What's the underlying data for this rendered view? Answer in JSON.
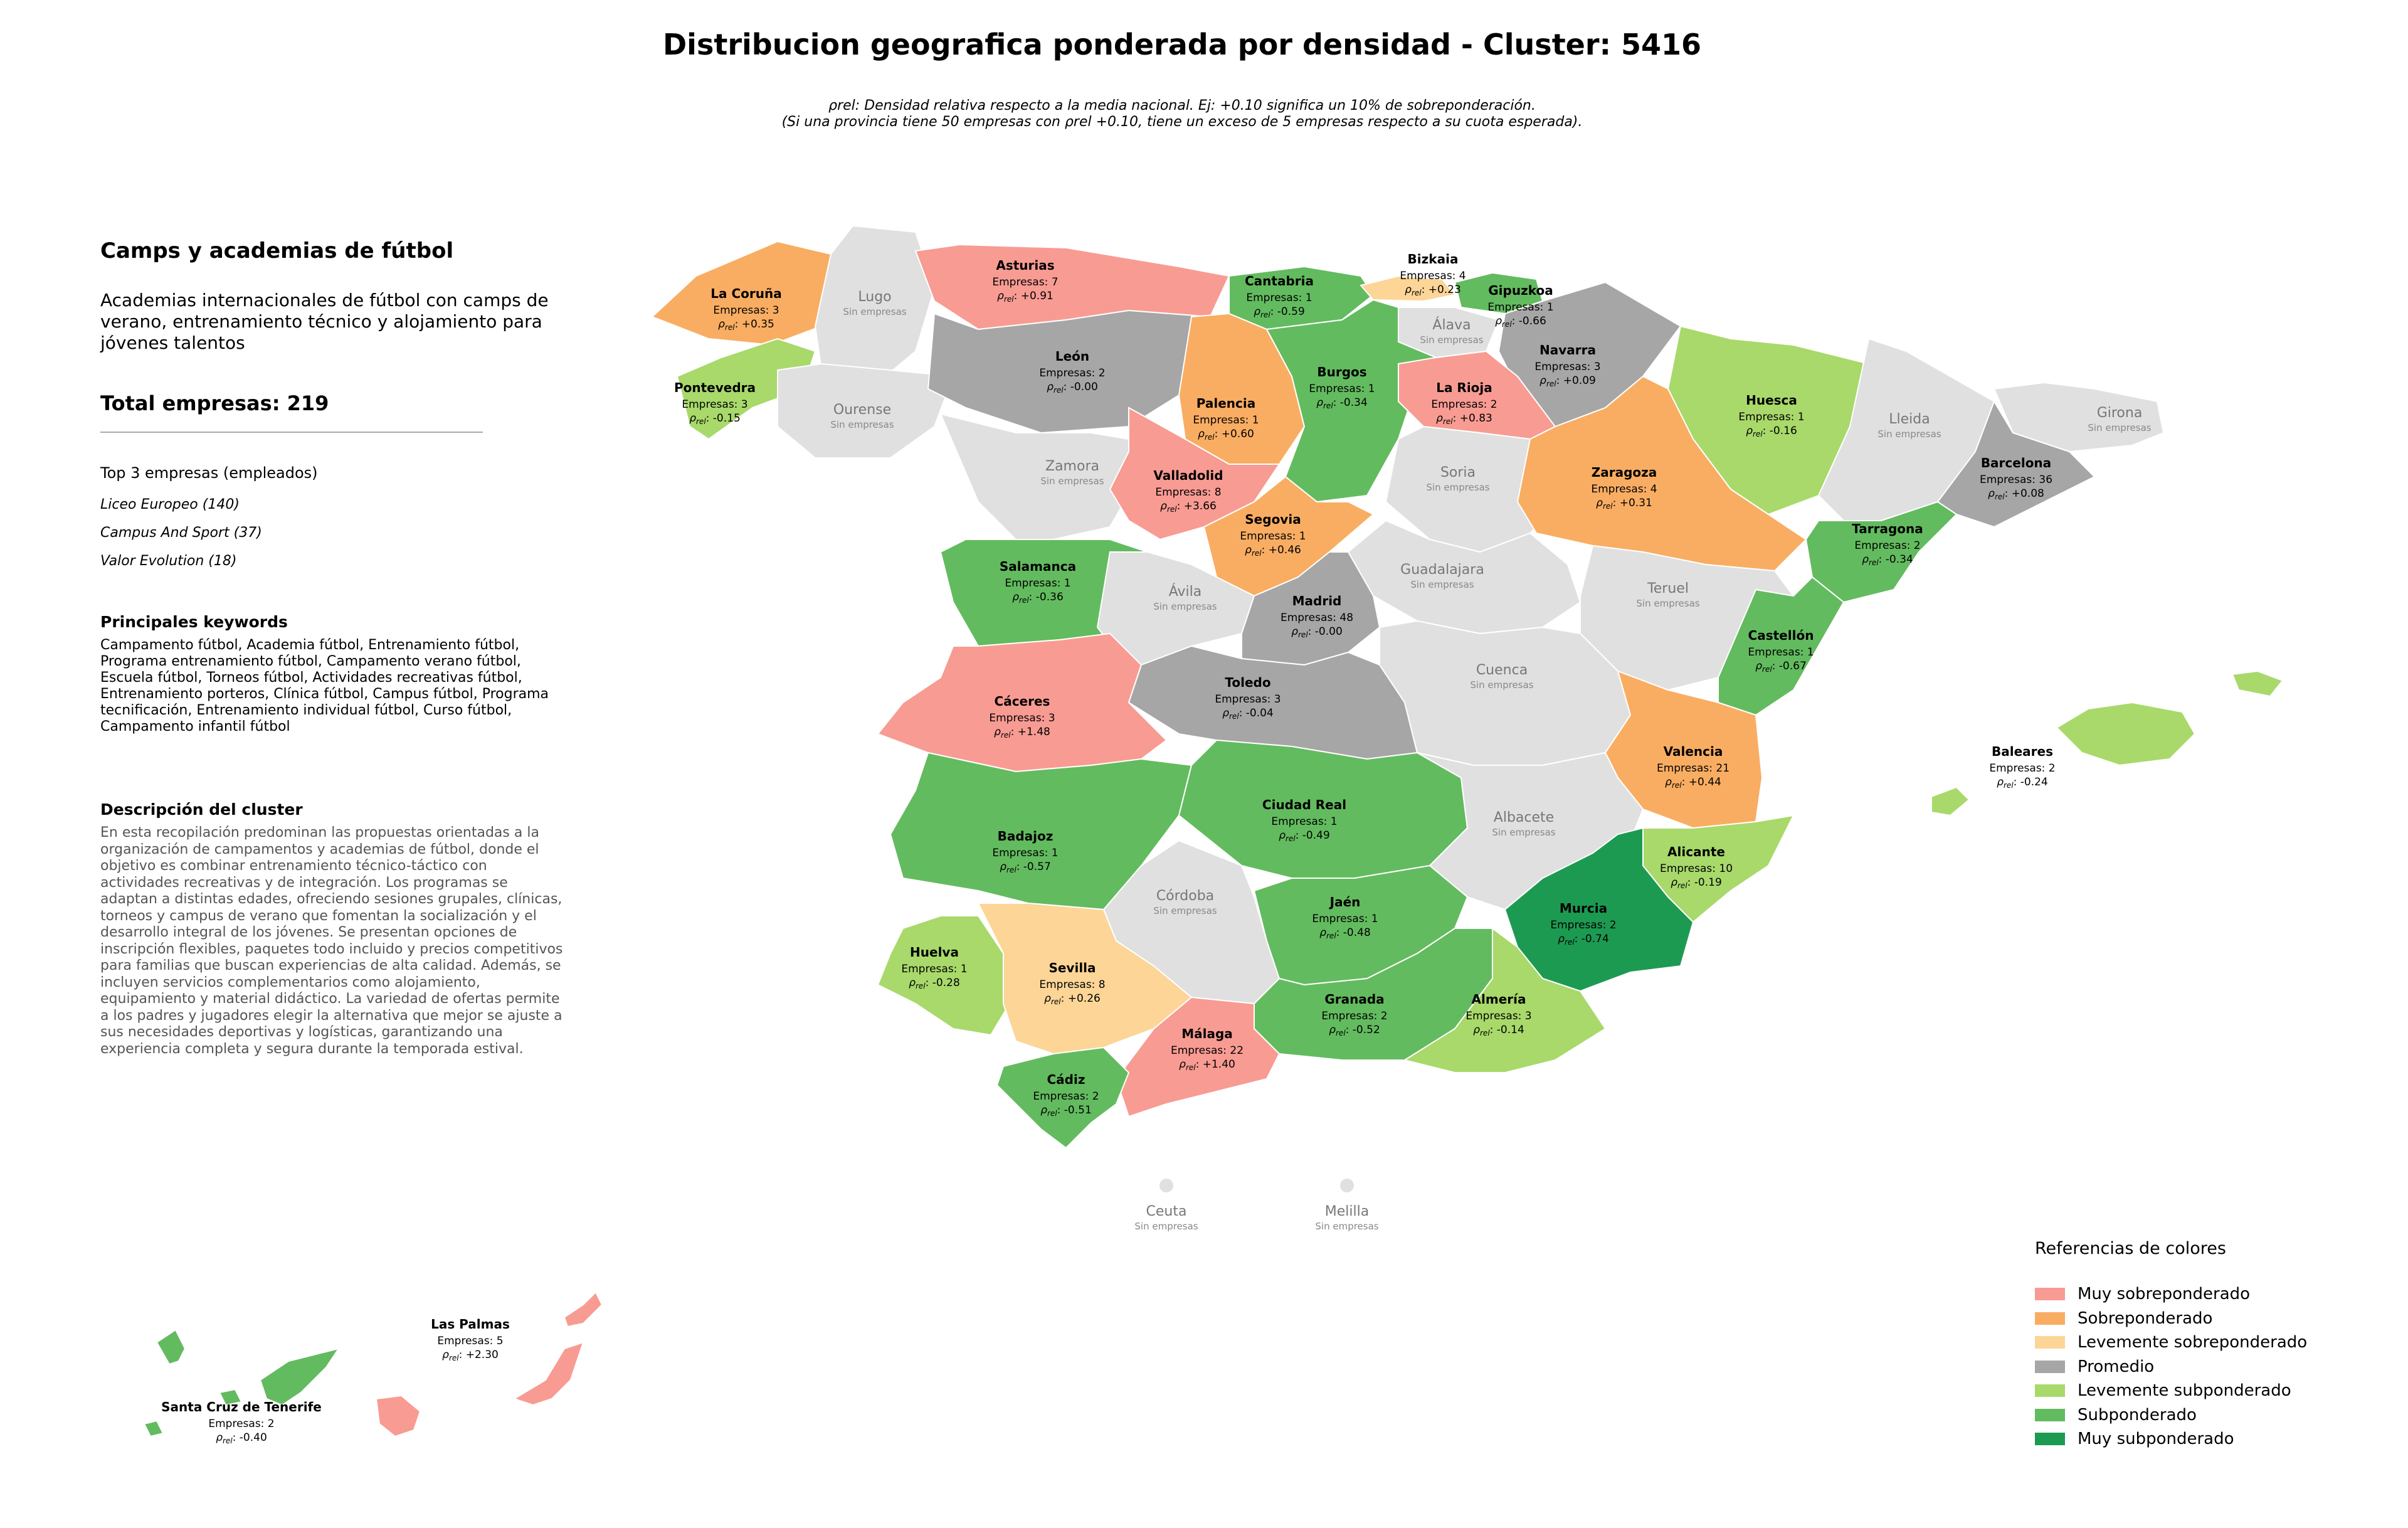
{
  "title": "Distribucion geografica ponderada por densidad - Cluster: 5416",
  "note_line1": "ρrel: Densidad relativa respecto a la media nacional. Ej: +0.10 significa un 10% de sobreponderación.",
  "note_line2": "(Si una provincia tiene 50 empresas con ρrel +0.10, tiene un exceso de 5 empresas respecto a su cuota esperada).",
  "sidebar": {
    "heading": "Camps y academias de fútbol",
    "description": "Academias internacionales de fútbol con camps de verano, entrenamiento técnico y alojamiento para jóvenes talentos",
    "total": "Total empresas: 219",
    "top_title": "Top 3 empresas (empleados)",
    "top": [
      "Liceo Europeo (140)",
      "Campus And Sport (37)",
      "Valor Evolution (18)"
    ],
    "keywords_heading": "Principales keywords",
    "keywords": "Campamento fútbol, Academia fútbol, Entrenamiento fútbol, Programa entrenamiento fútbol, Campamento verano fútbol, Escuela fútbol, Torneos fútbol, Actividades recreativas fútbol, Entrenamiento porteros, Clínica fútbol, Campus fútbol, Programa tecnificación, Entrenamiento individual fútbol, Curso fútbol, Campamento infantil fútbol",
    "cluster_heading": "Descripción del cluster",
    "cluster_text": "En esta recopilación predominan las propuestas orientadas a la organización de campamentos y academias de fútbol, donde el objetivo es combinar entrenamiento técnico-táctico con actividades recreativas y de integración. Los programas se adaptan a distintas edades, ofreciendo sesiones grupales, clínicas, torneos y campus de verano que fomentan la socialización y el desarrollo integral de los jóvenes. Se presentan opciones de inscripción flexibles, paquetes todo incluido y precios competitivos para familias que buscan experiencias de alta calidad. Además, se incluyen servicios complementarios como alojamiento, equipamiento y material didáctico. La variedad de ofertas permite a los padres y jugadores elegir la alternativa que mejor se ajuste a sus necesidades deportivas y logísticas, garantizando una experiencia completa y segura durante la temporada estival."
  },
  "colors": {
    "muy_sobre": "#f89b93",
    "sobre": "#f9ad62",
    "lev_sobre": "#fcd597",
    "promedio": "#a6a6a6",
    "lev_sub": "#a8d96a",
    "sub": "#63bb5f",
    "muy_sub": "#1d9a52",
    "sin": "#e0e0e0",
    "sin_label": "Sin empresas"
  },
  "legend": {
    "title": "Referencias de colores",
    "items": [
      {
        "label": "Muy sobreponderado",
        "color": "#f89b93"
      },
      {
        "label": "Sobreponderado",
        "color": "#f9ad62"
      },
      {
        "label": "Levemente sobreponderado",
        "color": "#fcd597"
      },
      {
        "label": "Promedio",
        "color": "#a6a6a6"
      },
      {
        "label": "Levemente subponderado",
        "color": "#a8d96a"
      },
      {
        "label": "Subponderado",
        "color": "#63bb5f"
      },
      {
        "label": "Muy subponderado",
        "color": "#1d9a52"
      }
    ]
  },
  "provinces": [
    {
      "name": "La Coruña",
      "empresas": "Empresas: 3",
      "rho": "+0.35",
      "cat": "sobre"
    },
    {
      "name": "Lugo",
      "cat": "sin"
    },
    {
      "name": "Asturias",
      "empresas": "Empresas: 7",
      "rho": "+0.91",
      "cat": "muy_sobre"
    },
    {
      "name": "Cantabria",
      "empresas": "Empresas: 1",
      "rho": "-0.59",
      "cat": "sub"
    },
    {
      "name": "Bizkaia",
      "empresas": "Empresas: 4",
      "rho": "+0.23",
      "cat": "lev_sobre"
    },
    {
      "name": "Gipuzkoa",
      "empresas": "Empresas: 1",
      "rho": "-0.66",
      "cat": "sub"
    },
    {
      "name": "Álava",
      "cat": "sin"
    },
    {
      "name": "Navarra",
      "empresas": "Empresas: 3",
      "rho": "+0.09",
      "cat": "promedio"
    },
    {
      "name": "Pontevedra",
      "empresas": "Empresas: 3",
      "rho": "-0.15",
      "cat": "lev_sub"
    },
    {
      "name": "Ourense",
      "cat": "sin"
    },
    {
      "name": "León",
      "empresas": "Empresas: 2",
      "rho": "-0.00",
      "cat": "promedio"
    },
    {
      "name": "Palencia",
      "empresas": "Empresas: 1",
      "rho": "+0.60",
      "cat": "sobre"
    },
    {
      "name": "Burgos",
      "empresas": "Empresas: 1",
      "rho": "-0.34",
      "cat": "sub"
    },
    {
      "name": "La Rioja",
      "empresas": "Empresas: 2",
      "rho": "+0.83",
      "cat": "muy_sobre"
    },
    {
      "name": "Huesca",
      "empresas": "Empresas: 1",
      "rho": "-0.16",
      "cat": "lev_sub"
    },
    {
      "name": "Lleida",
      "cat": "sin"
    },
    {
      "name": "Girona",
      "cat": "sin"
    },
    {
      "name": "Barcelona",
      "empresas": "Empresas: 36",
      "rho": "+0.08",
      "cat": "promedio"
    },
    {
      "name": "Zamora",
      "cat": "sin"
    },
    {
      "name": "Valladolid",
      "empresas": "Empresas: 8",
      "rho": "+3.66",
      "cat": "muy_sobre"
    },
    {
      "name": "Soria",
      "cat": "sin"
    },
    {
      "name": "Zaragoza",
      "empresas": "Empresas: 4",
      "rho": "+0.31",
      "cat": "sobre"
    },
    {
      "name": "Tarragona",
      "empresas": "Empresas: 2",
      "rho": "-0.34",
      "cat": "sub"
    },
    {
      "name": "Salamanca",
      "empresas": "Empresas: 1",
      "rho": "-0.36",
      "cat": "sub"
    },
    {
      "name": "Segovia",
      "empresas": "Empresas: 1",
      "rho": "+0.46",
      "cat": "sobre"
    },
    {
      "name": "Ávila",
      "cat": "sin"
    },
    {
      "name": "Guadalajara",
      "cat": "sin"
    },
    {
      "name": "Teruel",
      "cat": "sin"
    },
    {
      "name": "Madrid",
      "empresas": "Empresas: 48",
      "rho": "-0.00",
      "cat": "promedio"
    },
    {
      "name": "Castellón",
      "empresas": "Empresas: 1",
      "rho": "-0.67",
      "cat": "sub"
    },
    {
      "name": "Cáceres",
      "empresas": "Empresas: 3",
      "rho": "+1.48",
      "cat": "muy_sobre"
    },
    {
      "name": "Toledo",
      "empresas": "Empresas: 3",
      "rho": "-0.04",
      "cat": "promedio"
    },
    {
      "name": "Cuenca",
      "cat": "sin"
    },
    {
      "name": "Valencia",
      "empresas": "Empresas: 21",
      "rho": "+0.44",
      "cat": "sobre"
    },
    {
      "name": "Baleares",
      "empresas": "Empresas: 2",
      "rho": "-0.24",
      "cat": "lev_sub"
    },
    {
      "name": "Badajoz",
      "empresas": "Empresas: 1",
      "rho": "-0.57",
      "cat": "sub"
    },
    {
      "name": "Ciudad Real",
      "empresas": "Empresas: 1",
      "rho": "-0.49",
      "cat": "sub"
    },
    {
      "name": "Albacete",
      "cat": "sin"
    },
    {
      "name": "Alicante",
      "empresas": "Empresas: 10",
      "rho": "-0.19",
      "cat": "lev_sub"
    },
    {
      "name": "Córdoba",
      "cat": "sin"
    },
    {
      "name": "Jaén",
      "empresas": "Empresas: 1",
      "rho": "-0.48",
      "cat": "sub"
    },
    {
      "name": "Murcia",
      "empresas": "Empresas: 2",
      "rho": "-0.74",
      "cat": "muy_sub"
    },
    {
      "name": "Huelva",
      "empresas": "Empresas: 1",
      "rho": "-0.28",
      "cat": "lev_sub"
    },
    {
      "name": "Sevilla",
      "empresas": "Empresas: 8",
      "rho": "+0.26",
      "cat": "lev_sobre"
    },
    {
      "name": "Granada",
      "empresas": "Empresas: 2",
      "rho": "-0.52",
      "cat": "sub"
    },
    {
      "name": "Almería",
      "empresas": "Empresas: 3",
      "rho": "-0.14",
      "cat": "lev_sub"
    },
    {
      "name": "Málaga",
      "empresas": "Empresas: 22",
      "rho": "+1.40",
      "cat": "muy_sobre"
    },
    {
      "name": "Cádiz",
      "empresas": "Empresas: 2",
      "rho": "-0.51",
      "cat": "sub"
    },
    {
      "name": "Ceuta",
      "cat": "sin"
    },
    {
      "name": "Melilla",
      "cat": "sin"
    },
    {
      "name": "Las Palmas",
      "empresas": "Empresas: 5",
      "rho": "+2.30",
      "cat": "muy_sobre"
    },
    {
      "name": "Santa Cruz de Tenerife",
      "empresas": "Empresas: 2",
      "rho": "-0.40",
      "cat": "sub"
    }
  ]
}
